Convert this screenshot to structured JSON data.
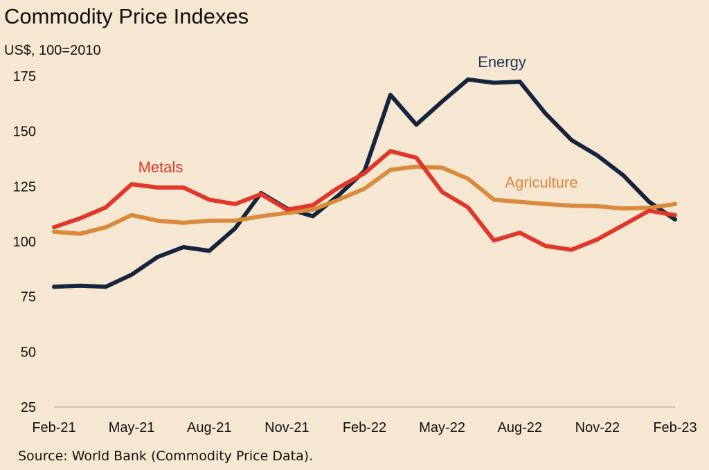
{
  "title": "Commodity Price Indexes",
  "subtitle": "US$, 100=2010",
  "source": "Source: World Bank (Commodity Price Data).",
  "chart_data": {
    "type": "line",
    "title": "Commodity Price Indexes",
    "ylabel": "US$, 100=2010",
    "xlabel": "",
    "ylim": [
      25,
      175
    ],
    "yticks": [
      25,
      50,
      75,
      100,
      125,
      150,
      175
    ],
    "xtick_labels": [
      "Feb-21",
      "May-21",
      "Aug-21",
      "Nov-21",
      "Feb-22",
      "May-22",
      "Aug-22",
      "Nov-22",
      "Feb-23"
    ],
    "x": [
      "Feb-21",
      "Mar-21",
      "Apr-21",
      "May-21",
      "Jun-21",
      "Jul-21",
      "Aug-21",
      "Sep-21",
      "Oct-21",
      "Nov-21",
      "Dec-21",
      "Jan-22",
      "Feb-22",
      "Mar-22",
      "Apr-22",
      "May-22",
      "Jun-22",
      "Jul-22",
      "Aug-22",
      "Sep-22",
      "Oct-22",
      "Nov-22",
      "Dec-22",
      "Jan-23",
      "Feb-23"
    ],
    "series": [
      {
        "name": "Energy",
        "color": "#14253d",
        "values": [
          79.5,
          80,
          79.5,
          85,
          93,
          97.5,
          95.8,
          106,
          122,
          115,
          111.5,
          121,
          132,
          166.5,
          153,
          163.5,
          173.5,
          172,
          172.5,
          158,
          146,
          139,
          130,
          118,
          110
        ]
      },
      {
        "name": "Metals",
        "color": "#e0372a",
        "values": [
          106.5,
          110.5,
          115.5,
          126,
          124.5,
          124.5,
          119,
          117,
          121.5,
          114.5,
          116.5,
          124.5,
          131,
          141,
          138,
          122.5,
          115.5,
          100.5,
          104,
          98,
          96.3,
          101,
          107.5,
          114,
          112
        ]
      },
      {
        "name": "Agriculture",
        "color": "#d98a3c",
        "values": [
          104.5,
          103.5,
          106.5,
          112,
          109.5,
          108.5,
          109.5,
          109.5,
          111.5,
          113,
          114.5,
          119,
          124,
          132.5,
          134,
          133.5,
          128.5,
          119,
          118,
          117,
          116.3,
          116,
          115,
          115.3,
          117
        ]
      }
    ],
    "legend": "inline labels"
  }
}
